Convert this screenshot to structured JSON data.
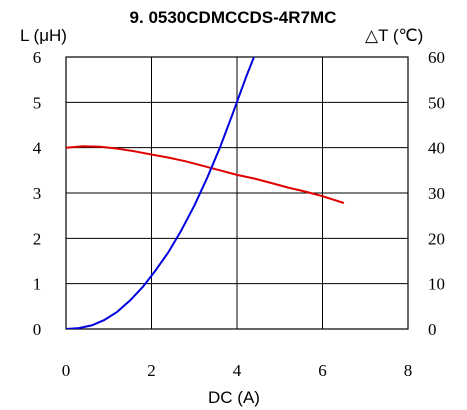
{
  "chart_data": {
    "type": "line",
    "title": "9. 0530CDMCCDS-4R7MC",
    "xlabel": "DC (A)",
    "ylabel_left": "L (μH)",
    "ylabel_right": "△T (℃)",
    "xlim": [
      0,
      8
    ],
    "ylim_left": [
      0,
      6
    ],
    "ylim_right": [
      0,
      60
    ],
    "x_ticks": [
      "0",
      "2",
      "4",
      "6",
      "8"
    ],
    "y_ticks_left": [
      "0",
      "1",
      "2",
      "3",
      "4",
      "5",
      "6"
    ],
    "y_ticks_right": [
      "0",
      "10",
      "20",
      "30",
      "40",
      "50",
      "60"
    ],
    "grid": true,
    "series": [
      {
        "name": "",
        "axis": "left",
        "color": "#e00000",
        "x": [
          0,
          0.4,
          0.8,
          1.2,
          1.6,
          2.0,
          2.4,
          2.8,
          3.2,
          3.6,
          4.0,
          4.4,
          4.8,
          5.2,
          5.6,
          6.0,
          6.5
        ],
        "y": [
          4.0,
          4.03,
          4.02,
          3.98,
          3.92,
          3.85,
          3.78,
          3.7,
          3.6,
          3.5,
          3.4,
          3.32,
          3.22,
          3.12,
          3.03,
          2.93,
          2.78
        ]
      },
      {
        "name": "",
        "axis": "right",
        "color": "#0000e0",
        "x": [
          0,
          0.3,
          0.6,
          0.9,
          1.2,
          1.5,
          1.8,
          2.1,
          2.4,
          2.7,
          3.0,
          3.3,
          3.6,
          3.9,
          4.2,
          4.5,
          4.65
        ],
        "y": [
          0,
          0.2,
          0.8,
          2,
          3.8,
          6.3,
          9.3,
          13,
          17,
          21.8,
          27.2,
          33.3,
          40,
          47.5,
          55.3,
          62.5,
          60
        ]
      }
    ]
  }
}
